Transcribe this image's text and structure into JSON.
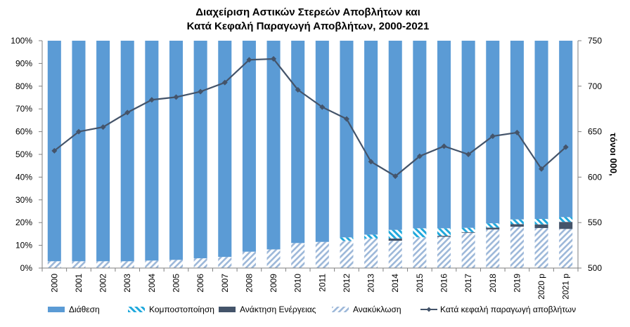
{
  "chart_data": {
    "type": "bar",
    "title_line1": "Διαχείριση  Αστικών Στερεών Αποβλήτων και",
    "title_line2": "Κατά Κεφαλή Παραγωγή Αποβλήτων, 2000-2021",
    "y2label": "τόνοι 000,",
    "categories": [
      "2000",
      "2001",
      "2002",
      "2003",
      "2004",
      "2005",
      "2006",
      "2007",
      "2008",
      "2009",
      "2010",
      "2011",
      "2012",
      "2013",
      "2014",
      "2015",
      "2016",
      "2017",
      "2018",
      "2019",
      "2020 p",
      "2021 p"
    ],
    "y_ticks": [
      "0%",
      "10%",
      "20%",
      "30%",
      "40%",
      "50%",
      "60%",
      "70%",
      "80%",
      "90%",
      "100%"
    ],
    "y2_ticks": [
      "500",
      "550",
      "600",
      "650",
      "700",
      "750"
    ],
    "ylim": [
      0,
      100
    ],
    "y2lim": [
      500,
      750
    ],
    "series": [
      {
        "name": "Ανακύκλωση",
        "kind": "stack",
        "values": [
          3,
          3,
          3,
          3,
          3.3,
          3.6,
          4.3,
          4.9,
          7.2,
          8.2,
          11,
          11.5,
          12,
          13,
          12,
          13.5,
          13.8,
          15.5,
          17,
          18.2,
          17.6,
          17.2
        ]
      },
      {
        "name": "Ανάκτηση Ενέργειας",
        "kind": "stack",
        "values": [
          0,
          0,
          0,
          0,
          0,
          0,
          0,
          0,
          0,
          0,
          0,
          0,
          0,
          0,
          1,
          0,
          0.4,
          0.3,
          0.8,
          1.1,
          1.6,
          3.1
        ]
      },
      {
        "name": "Κομποστοποίηση",
        "kind": "stack",
        "values": [
          0,
          0,
          0,
          0,
          0,
          0,
          0,
          0,
          0,
          0,
          0,
          0,
          1.5,
          1.7,
          3.8,
          4,
          3.3,
          1.9,
          1.9,
          2.1,
          2.4,
          2.1
        ]
      },
      {
        "name": "Διάθεση",
        "kind": "stack",
        "values": [
          97,
          97,
          97,
          97,
          96.7,
          96.4,
          95.7,
          95.1,
          92.8,
          91.8,
          89,
          88.5,
          86.5,
          85.3,
          83.2,
          82.5,
          82.5,
          82.3,
          80.3,
          78.6,
          78.4,
          77.6
        ]
      },
      {
        "name": "Κατά κεφαλή παραγωγή αποβλήτων",
        "kind": "line",
        "axis": "right",
        "values": [
          629,
          650,
          655,
          671,
          685,
          688,
          694,
          704,
          729,
          730,
          696,
          677,
          664,
          617,
          601,
          623,
          634,
          625,
          645,
          649,
          609,
          633
        ]
      }
    ],
    "legend": [
      "Διάθεση",
      "Κομποστοποίηση",
      "Ανάκτηση Ενέργειας",
      "Ανακύκλωση",
      "Κατά κεφαλή παραγωγή αποβλήτων"
    ],
    "legend_position": "bottom",
    "grid": false,
    "colors": {
      "disposal": "#5b9bd5",
      "composting": "#1fa8dc",
      "energy": "#44546a",
      "recycling": "#9db8d9",
      "line": "#44546a"
    }
  }
}
